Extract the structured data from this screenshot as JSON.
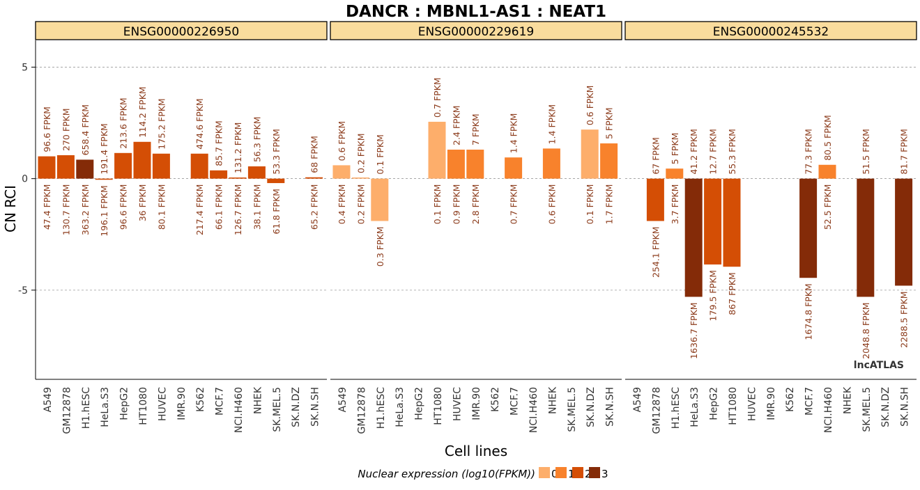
{
  "chart_data": {
    "type": "bar",
    "title": "DANCR : MBNL1-AS1 : NEAT1",
    "xlabel": "Cell lines",
    "ylabel": "CN RCI",
    "ylim": [
      -9,
      6.2
    ],
    "yticks": [
      5,
      0,
      -5
    ],
    "grid": true,
    "watermark": "lncATLAS",
    "legend": {
      "title": "Nuclear expression (log10(FPKM))",
      "placement": "bottom",
      "items": [
        {
          "label": "0",
          "color": "#fdae6b"
        },
        {
          "label": "1",
          "color": "#f8822c"
        },
        {
          "label": "2",
          "color": "#d44e05"
        },
        {
          "label": "3",
          "color": "#842b08"
        }
      ]
    },
    "label_color": "#8c3c1c",
    "categories": [
      "A549",
      "GM12878",
      "H1.hESC",
      "HeLa.S3",
      "HepG2",
      "HT1080",
      "HUVEC",
      "IMR.90",
      "K562",
      "MCF.7",
      "NCI.H460",
      "NHEK",
      "SK.MEL.5",
      "SK.N.DZ",
      "SK.N.SH"
    ],
    "panels": [
      {
        "name": "ENSG00000226950",
        "bars": [
          {
            "cell": "A549",
            "value": 1.0,
            "level": 2,
            "top": "96.6 FPKM",
            "bottom": "47.4 FPKM"
          },
          {
            "cell": "GM12878",
            "value": 1.05,
            "level": 2,
            "top": "270 FPKM",
            "bottom": "130.7 FPKM"
          },
          {
            "cell": "H1.hESC",
            "value": 0.85,
            "level": 3,
            "top": "658.4 FPKM",
            "bottom": "363.2 FPKM"
          },
          {
            "cell": "HeLa.S3",
            "value": -0.05,
            "level": 2,
            "top": "191.4 FPKM",
            "bottom": "196.1 FPKM"
          },
          {
            "cell": "HepG2",
            "value": 1.15,
            "level": 2,
            "top": "213.6 FPKM",
            "bottom": "96.6 FPKM"
          },
          {
            "cell": "HT1080",
            "value": 1.65,
            "level": 2,
            "top": "114.2 FPKM",
            "bottom": "36 FPKM"
          },
          {
            "cell": "HUVEC",
            "value": 1.12,
            "level": 2,
            "top": "175.2 FPKM",
            "bottom": "80.1 FPKM"
          },
          {
            "cell": "IMR.90",
            "value": null,
            "level": null,
            "top": "",
            "bottom": ""
          },
          {
            "cell": "K562",
            "value": 1.12,
            "level": 2,
            "top": "474.6 FPKM",
            "bottom": "217.4 FPKM"
          },
          {
            "cell": "MCF.7",
            "value": 0.37,
            "level": 2,
            "top": "85.7 FPKM",
            "bottom": "66.1 FPKM"
          },
          {
            "cell": "NCI.H460",
            "value": 0.05,
            "level": 2,
            "top": "131.2 FPKM",
            "bottom": "126.7 FPKM"
          },
          {
            "cell": "NHEK",
            "value": 0.55,
            "level": 2,
            "top": "56.3 FPKM",
            "bottom": "38.1 FPKM"
          },
          {
            "cell": "SK.MEL.5",
            "value": -0.2,
            "level": 2,
            "top": "53.3 FPKM",
            "bottom": "61.8 FPKM"
          },
          {
            "cell": "SK.N.DZ",
            "value": null,
            "level": null,
            "top": "",
            "bottom": ""
          },
          {
            "cell": "SK.N.SH",
            "value": 0.06,
            "level": 2,
            "top": "68 FPKM",
            "bottom": "65.2 FPKM"
          }
        ]
      },
      {
        "name": "ENSG00000229619",
        "bars": [
          {
            "cell": "A549",
            "value": 0.6,
            "level": 0,
            "top": "0.6 FPKM",
            "bottom": "0.4 FPKM"
          },
          {
            "cell": "GM12878",
            "value": 0.05,
            "level": 0,
            "top": "0.2 FPKM",
            "bottom": "0.2 FPKM"
          },
          {
            "cell": "H1.hESC",
            "value": -1.9,
            "level": 0,
            "top": "0.1 FPKM",
            "bottom": "0.3 FPKM"
          },
          {
            "cell": "HeLa.S3",
            "value": null,
            "level": null,
            "top": "",
            "bottom": ""
          },
          {
            "cell": "HepG2",
            "value": null,
            "level": null,
            "top": "",
            "bottom": ""
          },
          {
            "cell": "HT1080",
            "value": 2.55,
            "level": 0,
            "top": "0.7 FPKM",
            "bottom": "0.1 FPKM"
          },
          {
            "cell": "HUVEC",
            "value": 1.3,
            "level": 1,
            "top": "2.4 FPKM",
            "bottom": "0.9 FPKM"
          },
          {
            "cell": "IMR.90",
            "value": 1.3,
            "level": 1,
            "top": "7 FPKM",
            "bottom": "2.8 FPKM"
          },
          {
            "cell": "K562",
            "value": null,
            "level": null,
            "top": "",
            "bottom": ""
          },
          {
            "cell": "MCF.7",
            "value": 0.95,
            "level": 1,
            "top": "1.4 FPKM",
            "bottom": "0.7 FPKM"
          },
          {
            "cell": "NCI.H460",
            "value": null,
            "level": null,
            "top": "",
            "bottom": ""
          },
          {
            "cell": "NHEK",
            "value": 1.35,
            "level": 1,
            "top": "1.4 FPKM",
            "bottom": "0.6 FPKM"
          },
          {
            "cell": "SK.MEL.5",
            "value": null,
            "level": null,
            "top": "",
            "bottom": ""
          },
          {
            "cell": "SK.N.DZ",
            "value": 2.2,
            "level": 0,
            "top": "0.6 FPKM",
            "bottom": "0.1 FPKM"
          },
          {
            "cell": "SK.N.SH",
            "value": 1.58,
            "level": 1,
            "top": "5 FPKM",
            "bottom": "1.7 FPKM"
          }
        ]
      },
      {
        "name": "ENSG00000245532",
        "bars": [
          {
            "cell": "A549",
            "value": null,
            "level": null,
            "top": "",
            "bottom": ""
          },
          {
            "cell": "GM12878",
            "value": -1.9,
            "level": 2,
            "top": "67 FPKM",
            "bottom": "254.1 FPKM"
          },
          {
            "cell": "H1.hESC",
            "value": 0.45,
            "level": 1,
            "top": "5 FPKM",
            "bottom": "3.7 FPKM"
          },
          {
            "cell": "HeLa.S3",
            "value": -5.3,
            "level": 3,
            "top": "41.2 FPKM",
            "bottom": "1636.7 FPKM"
          },
          {
            "cell": "HepG2",
            "value": -3.85,
            "level": 2,
            "top": "12.7 FPKM",
            "bottom": "179.5 FPKM"
          },
          {
            "cell": "HT1080",
            "value": -3.95,
            "level": 2,
            "top": "55.3 FPKM",
            "bottom": "867 FPKM"
          },
          {
            "cell": "HUVEC",
            "value": null,
            "level": null,
            "top": "",
            "bottom": ""
          },
          {
            "cell": "IMR.90",
            "value": null,
            "level": null,
            "top": "",
            "bottom": ""
          },
          {
            "cell": "K562",
            "value": null,
            "level": null,
            "top": "",
            "bottom": ""
          },
          {
            "cell": "MCF.7",
            "value": -4.45,
            "level": 3,
            "top": "77.3 FPKM",
            "bottom": "1674.8 FPKM"
          },
          {
            "cell": "NCI.H460",
            "value": 0.62,
            "level": 1,
            "top": "80.5 FPKM",
            "bottom": "52.5 FPKM"
          },
          {
            "cell": "NHEK",
            "value": null,
            "level": null,
            "top": "",
            "bottom": ""
          },
          {
            "cell": "SK.MEL.5",
            "value": -5.3,
            "level": 3,
            "top": "51.5 FPKM",
            "bottom": "2048.8 FPKM"
          },
          {
            "cell": "SK.N.DZ",
            "value": null,
            "level": null,
            "top": "",
            "bottom": ""
          },
          {
            "cell": "SK.N.SH",
            "value": -4.8,
            "level": 3,
            "top": "81.7 FPKM",
            "bottom": "2288.5 FPKM"
          }
        ]
      }
    ]
  }
}
